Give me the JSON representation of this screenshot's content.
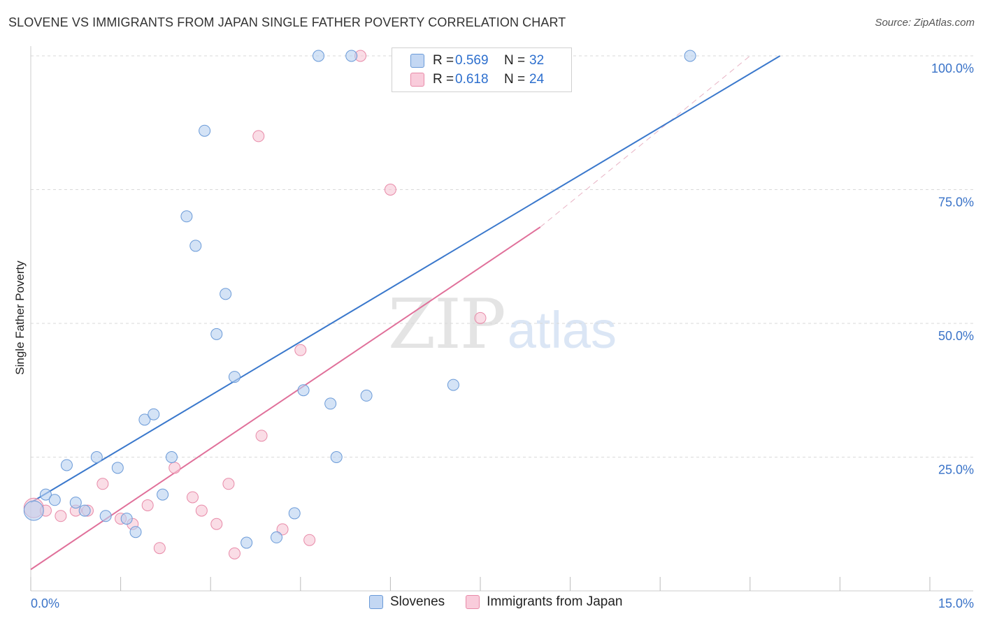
{
  "header": {
    "title": "SLOVENE VS IMMIGRANTS FROM JAPAN SINGLE FATHER POVERTY CORRELATION CHART",
    "source": "Source: ZipAtlas.com"
  },
  "watermark": {
    "zip": "ZIP",
    "atlas": "atlas"
  },
  "legend_top": {
    "rows": [
      {
        "r_label": "R =",
        "r_value": "0.569",
        "n_label": "N =",
        "n_value": "32"
      },
      {
        "r_label": "R =",
        "r_value": "0.618",
        "n_label": "N =",
        "n_value": "24"
      }
    ]
  },
  "legend_bottom": {
    "series_a": "Slovenes",
    "series_b": "Immigrants from Japan"
  },
  "colors": {
    "blue_fill": "#b8d0f0",
    "blue_stroke": "#6a9ad8",
    "blue_line": "#3a78cc",
    "pink_fill": "#f7c6d6",
    "pink_stroke": "#e88aa8",
    "pink_line": "#e0709a",
    "grid": "#d9d9d9",
    "tick_text": "#3a73c8"
  },
  "chart_data": {
    "type": "scatter",
    "title": "SLOVENE VS IMMIGRANTS FROM JAPAN SINGLE FATHER POVERTY CORRELATION CHART",
    "xlabel": "",
    "ylabel": "Single Father Poverty",
    "xlim": [
      0,
      15
    ],
    "ylim": [
      0,
      100
    ],
    "x_tick_labels": [
      "0.0%",
      "15.0%"
    ],
    "y_ticks": [
      25,
      50,
      75,
      100
    ],
    "y_tick_labels": [
      "25.0%",
      "50.0%",
      "75.0%",
      "100.0%"
    ],
    "grid": true,
    "series": [
      {
        "name": "Slovenes",
        "r": 0.569,
        "n": 32,
        "points": [
          [
            0.05,
            15.0
          ],
          [
            0.25,
            18.0
          ],
          [
            0.4,
            17.0
          ],
          [
            0.6,
            23.5
          ],
          [
            0.75,
            16.5
          ],
          [
            0.9,
            15.0
          ],
          [
            1.1,
            25.0
          ],
          [
            1.25,
            14.0
          ],
          [
            1.45,
            23.0
          ],
          [
            1.6,
            13.5
          ],
          [
            1.75,
            11.0
          ],
          [
            1.9,
            32.0
          ],
          [
            2.05,
            33.0
          ],
          [
            2.2,
            18.0
          ],
          [
            2.35,
            25.0
          ],
          [
            2.6,
            70.0
          ],
          [
            2.75,
            64.5
          ],
          [
            2.9,
            86.0
          ],
          [
            3.1,
            48.0
          ],
          [
            3.25,
            55.5
          ],
          [
            3.4,
            40.0
          ],
          [
            3.6,
            9.0
          ],
          [
            4.1,
            10.0
          ],
          [
            4.4,
            14.5
          ],
          [
            4.55,
            37.5
          ],
          [
            4.8,
            100.0
          ],
          [
            5.0,
            35.0
          ],
          [
            5.1,
            25.0
          ],
          [
            5.35,
            100.0
          ],
          [
            5.6,
            36.5
          ],
          [
            7.05,
            38.5
          ],
          [
            11.0,
            100.0
          ]
        ],
        "trend": {
          "x0": 0,
          "y0": 16.5,
          "x1": 12.5,
          "y1": 100.0
        }
      },
      {
        "name": "Immigrants from Japan",
        "r": 0.618,
        "n": 24,
        "points": [
          [
            0.05,
            15.5
          ],
          [
            0.25,
            15.0
          ],
          [
            0.5,
            14.0
          ],
          [
            0.75,
            15.0
          ],
          [
            0.95,
            15.0
          ],
          [
            1.2,
            20.0
          ],
          [
            1.5,
            13.5
          ],
          [
            1.7,
            12.5
          ],
          [
            1.95,
            16.0
          ],
          [
            2.15,
            8.0
          ],
          [
            2.4,
            23.0
          ],
          [
            2.7,
            17.5
          ],
          [
            2.85,
            15.0
          ],
          [
            3.1,
            12.5
          ],
          [
            3.3,
            20.0
          ],
          [
            3.4,
            7.0
          ],
          [
            3.8,
            85.0
          ],
          [
            3.85,
            29.0
          ],
          [
            4.2,
            11.5
          ],
          [
            4.5,
            45.0
          ],
          [
            4.65,
            9.5
          ],
          [
            5.5,
            100.0
          ],
          [
            6.0,
            75.0
          ],
          [
            7.5,
            51.0
          ]
        ],
        "trend": {
          "x0": 0,
          "y0": 4.0,
          "x1": 8.5,
          "y1": 68.0
        },
        "trend_extension": {
          "x0": 8.5,
          "y0": 68.0,
          "x1": 12.0,
          "y1": 100.0
        }
      }
    ]
  }
}
